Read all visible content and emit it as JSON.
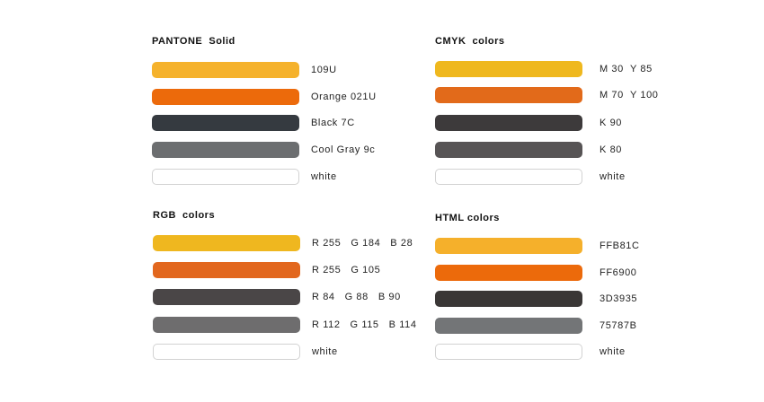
{
  "sections": [
    {
      "id": "pantone",
      "title": "PANTONE  Solid",
      "rows": [
        {
          "label": "109U",
          "color": "#F5B22C"
        },
        {
          "label": "Orange 021U",
          "color": "#EC6A0B"
        },
        {
          "label": "Black 7C",
          "color": "#353A40"
        },
        {
          "label": "Cool Gray 9c",
          "color": "#6C6E70"
        },
        {
          "label": "white",
          "color": "#FFFFFF"
        }
      ]
    },
    {
      "id": "cmyk",
      "title": "CMYK  colors",
      "rows": [
        {
          "label": "M 30  Y 85",
          "color": "#EFB81E"
        },
        {
          "label": "M 70  Y 100",
          "color": "#E26A1A"
        },
        {
          "label": "K 90",
          "color": "#3D3A3B"
        },
        {
          "label": "K 80",
          "color": "#575455"
        },
        {
          "label": "white",
          "color": "#FFFFFF"
        }
      ]
    },
    {
      "id": "rgb",
      "title": "RGB  colors",
      "rows": [
        {
          "label": "R 255   G 184   B 28",
          "color": "#EFB71F"
        },
        {
          "label": "R 255   G 105",
          "color": "#E2671E"
        },
        {
          "label": "R 84   G 88   B 90",
          "color": "#4A4647"
        },
        {
          "label": "R 112   G 115   B 114",
          "color": "#6E6D6E"
        },
        {
          "label": "white",
          "color": "#FFFFFF"
        }
      ]
    },
    {
      "id": "html",
      "title": "HTML colors",
      "rows": [
        {
          "label": "FFB81C",
          "color": "#F5B02B"
        },
        {
          "label": "FF6900",
          "color": "#EC6A0B"
        },
        {
          "label": "3D3935",
          "color": "#3A3736"
        },
        {
          "label": "75787B",
          "color": "#737577"
        },
        {
          "label": "white",
          "color": "#FFFFFF"
        }
      ]
    }
  ]
}
